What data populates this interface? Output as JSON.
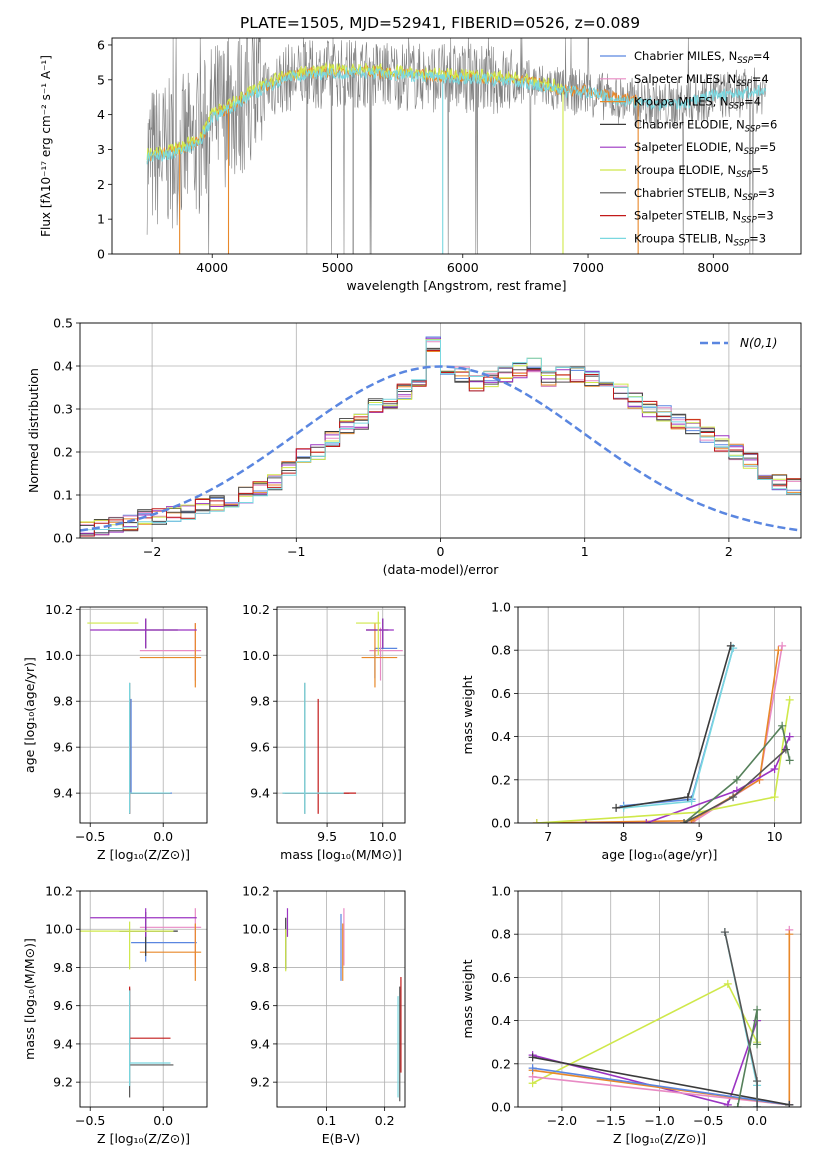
{
  "title": "PLATE=1505, MJD=52941, FIBERID=0526, z=0.089",
  "colors": {
    "chabrier_miles": "#5a86e0",
    "salpeter_miles": "#e88ac4",
    "kroupa_miles": "#e8882a",
    "chabrier_elodie": "#3b3b3b",
    "salpeter_elodie": "#9b34c2",
    "kroupa_elodie": "#cfe84a",
    "chabrier_stelib": "#555555",
    "salpeter_stelib": "#c21a1a",
    "kroupa_stelib": "#7ad8e0",
    "spectrum": "#808080",
    "green": "#55805a"
  },
  "chart_data": [
    {
      "id": "spectrum",
      "type": "line",
      "xlabel": "wavelength [Angstrom, rest frame]",
      "ylabel": "Flux [fλ10⁻¹⁷ erg cm⁻² s⁻¹ A⁻¹]",
      "xlim": [
        3200,
        8700
      ],
      "ylim": [
        0,
        6.2
      ],
      "xticks": [
        "4000",
        "5000",
        "6000",
        "7000",
        "8000"
      ],
      "yticks": [
        "0",
        "1",
        "2",
        "3",
        "4",
        "5",
        "6"
      ],
      "legend_position": "top-right",
      "legend": [
        "Chabrier MILES, N_SSP=4",
        "Salpeter MILES, N_SSP=4",
        "Kroupa MILES, N_SSP=4",
        "Chabrier ELODIE, N_SSP=6",
        "Salpeter ELODIE, N_SSP=5",
        "Kroupa ELODIE, N_SSP=5",
        "Chabrier STELIB, N_SSP=3",
        "Salpeter STELIB, N_SSP=3",
        "Kroupa STELIB, N_SSP=3"
      ],
      "continuum_x": [
        3500,
        3700,
        3900,
        4000,
        4200,
        4400,
        4600,
        4800,
        5000,
        5200,
        5400,
        5600,
        5800,
        6000,
        6200,
        6400,
        6600,
        6800,
        7000,
        7200,
        7400,
        7600,
        7800,
        8000,
        8200,
        8400
      ],
      "continuum_y": [
        2.75,
        2.9,
        3.2,
        3.9,
        4.3,
        4.75,
        5.05,
        5.15,
        5.2,
        5.2,
        5.15,
        5.1,
        5.05,
        5.05,
        5.0,
        4.95,
        4.85,
        4.65,
        4.65,
        4.45,
        4.35,
        4.25,
        4.35,
        4.55,
        4.6,
        4.7
      ]
    },
    {
      "id": "residuals",
      "type": "histogram",
      "xlabel": "(data-model)/error",
      "ylabel": "Normed distribution",
      "xlim": [
        -2.5,
        2.5
      ],
      "ylim": [
        0,
        0.5
      ],
      "xticks": [
        "−2",
        "−1",
        "0",
        "1",
        "2"
      ],
      "yticks": [
        "0.0",
        "0.1",
        "0.2",
        "0.3",
        "0.4",
        "0.5"
      ],
      "legend_position": "top-right",
      "legend": [
        "N(0,1)"
      ],
      "bin_width": 0.1,
      "bins_start": -2.5,
      "values": [
        0.022,
        0.025,
        0.03,
        0.035,
        0.05,
        0.05,
        0.055,
        0.06,
        0.075,
        0.08,
        0.09,
        0.1,
        0.115,
        0.13,
        0.16,
        0.19,
        0.2,
        0.23,
        0.26,
        0.27,
        0.31,
        0.32,
        0.34,
        0.36,
        0.45,
        0.37,
        0.38,
        0.36,
        0.37,
        0.38,
        0.39,
        0.4,
        0.37,
        0.38,
        0.38,
        0.37,
        0.35,
        0.34,
        0.32,
        0.3,
        0.29,
        0.27,
        0.26,
        0.24,
        0.22,
        0.2,
        0.18,
        0.15,
        0.13,
        0.12
      ]
    },
    {
      "id": "age-vs-Z",
      "type": "errorbar",
      "xlabel": "Z [log₁₀(Z/Z⊙)]",
      "ylabel": "age  [log₁₀(age/yr)]",
      "xlim": [
        -0.57,
        0.3
      ],
      "ylim": [
        9.27,
        10.21
      ],
      "xticks": [
        "−0.5",
        "0.0"
      ],
      "yticks": [
        "9.4",
        "9.6",
        "9.8",
        "10.0",
        "10.2"
      ],
      "points": [
        {
          "c": "chabrier_miles",
          "x": -0.22,
          "y": 9.4,
          "xe": [
            0.0,
            0.28
          ],
          "ye": [
            0.0,
            0.41
          ]
        },
        {
          "c": "salpeter_miles",
          "x": 0.22,
          "y": 10.02,
          "xe": [
            0.38,
            0.04
          ],
          "ye": [
            0.13,
            0.12
          ]
        },
        {
          "c": "kroupa_miles",
          "x": 0.22,
          "y": 9.99,
          "xe": [
            0.38,
            0.04
          ],
          "ye": [
            0.13,
            0.15
          ]
        },
        {
          "c": "chabrier_elodie",
          "x": -0.12,
          "y": 10.11,
          "xe": [
            0.18,
            0.22
          ],
          "ye": [
            0.08,
            0.05
          ]
        },
        {
          "c": "salpeter_elodie",
          "x": -0.12,
          "y": 10.11,
          "xe": [
            0.38,
            0.35
          ],
          "ye": [
            0.08,
            0.05
          ]
        },
        {
          "c": "kroupa_elodie",
          "x": -0.17,
          "y": 10.14,
          "xe": [
            0.35,
            0.0
          ],
          "ye": [
            0.0,
            0.0
          ]
        },
        {
          "c": "chabrier_stelib",
          "x": -0.23,
          "y": 9.4,
          "xe": [
            0.0,
            0.28
          ],
          "ye": [
            0.09,
            0.48
          ]
        },
        {
          "c": "salpeter_stelib",
          "x": -0.23,
          "y": 9.4,
          "xe": [
            0.0,
            0.28
          ],
          "ye": [
            0.09,
            0.41
          ]
        },
        {
          "c": "kroupa_stelib",
          "x": -0.23,
          "y": 9.4,
          "xe": [
            0.0,
            0.28
          ],
          "ye": [
            0.09,
            0.48
          ]
        }
      ]
    },
    {
      "id": "age-vs-mass",
      "type": "errorbar",
      "xlabel": "mass [log₁₀(M/M⊙)]",
      "ylabel": "",
      "xlim": [
        9.05,
        10.2
      ],
      "ylim": [
        9.27,
        10.21
      ],
      "xticks": [
        "9.5",
        "10.0"
      ],
      "yticks": [
        "9.4",
        "9.6",
        "9.8",
        "10.0",
        "10.2"
      ],
      "points": [
        {
          "c": "chabrier_miles",
          "x": 9.93,
          "y": 10.03,
          "xe": [
            0.0,
            0.2
          ],
          "ye": [
            0.13,
            0.0
          ]
        },
        {
          "c": "salpeter_miles",
          "x": 9.98,
          "y": 10.02,
          "xe": [
            0.1,
            0.2
          ],
          "ye": [
            0.13,
            0.1
          ]
        },
        {
          "c": "kroupa_miles",
          "x": 9.93,
          "y": 9.99,
          "xe": [
            0.12,
            0.2
          ],
          "ye": [
            0.13,
            0.15
          ]
        },
        {
          "c": "chabrier_elodie",
          "x": 10.0,
          "y": 10.11,
          "xe": [
            0.15,
            0.05
          ],
          "ye": [
            0.08,
            0.05
          ]
        },
        {
          "c": "salpeter_elodie",
          "x": 10.0,
          "y": 10.11,
          "xe": [
            0.15,
            0.1
          ],
          "ye": [
            0.08,
            0.05
          ]
        },
        {
          "c": "kroupa_elodie",
          "x": 9.96,
          "y": 10.14,
          "xe": [
            0.2,
            0.02
          ],
          "ye": [
            0.14,
            0.05
          ]
        },
        {
          "c": "chabrier_stelib",
          "x": 9.3,
          "y": 9.4,
          "xe": [
            0.2,
            0.4
          ],
          "ye": [
            0.09,
            0.48
          ]
        },
        {
          "c": "salpeter_stelib",
          "x": 9.42,
          "y": 9.4,
          "xe": [
            0.3,
            0.34
          ],
          "ye": [
            0.09,
            0.41
          ]
        },
        {
          "c": "kroupa_stelib",
          "x": 9.3,
          "y": 9.4,
          "xe": [
            0.2,
            0.35
          ],
          "ye": [
            0.09,
            0.48
          ]
        }
      ]
    },
    {
      "id": "mass-weight-vs-age",
      "type": "line",
      "xlabel": "age  [log₁₀(age/yr)]",
      "ylabel": "mass weight",
      "xlim": [
        6.6,
        10.35
      ],
      "ylim": [
        0,
        1
      ],
      "xticks": [
        "7",
        "8",
        "9",
        "10"
      ],
      "yticks": [
        "0.0",
        "0.2",
        "0.4",
        "0.6",
        "0.8",
        "1.0"
      ],
      "series": [
        {
          "c": "chabrier_miles",
          "x": [
            8.0,
            8.9,
            9.45
          ],
          "y": [
            0.08,
            0.11,
            0.81
          ]
        },
        {
          "c": "kroupa_stelib",
          "x": [
            8.0,
            8.9,
            9.45
          ],
          "y": [
            0.07,
            0.1,
            0.81
          ]
        },
        {
          "c": "chabrier_elodie",
          "x": [
            7.9,
            8.85,
            9.42
          ],
          "y": [
            0.07,
            0.12,
            0.82
          ]
        },
        {
          "c": "salpeter_miles",
          "x": [
            6.85,
            8.9,
            9.8,
            10.1
          ],
          "y": [
            0.0,
            0.0,
            0.2,
            0.82
          ]
        },
        {
          "c": "kroupa_miles",
          "x": [
            6.85,
            8.9,
            9.8,
            10.05
          ],
          "y": [
            0.0,
            0.01,
            0.2,
            0.8
          ]
        },
        {
          "c": "salpeter_elodie",
          "x": [
            7.5,
            8.3,
            9.5,
            10.0,
            10.2
          ],
          "y": [
            0.0,
            0.0,
            0.15,
            0.25,
            0.4
          ]
        },
        {
          "c": "kroupa_elodie",
          "x": [
            6.85,
            9.0,
            10.0,
            10.2
          ],
          "y": [
            0.0,
            0.05,
            0.12,
            0.57
          ]
        },
        {
          "c": "green",
          "x": [
            8.8,
            9.5,
            10.1,
            10.2
          ],
          "y": [
            0.0,
            0.2,
            0.45,
            0.29
          ]
        },
        {
          "c": "chabrier_stelib",
          "x": [
            8.8,
            9.45,
            10.15
          ],
          "y": [
            0.0,
            0.12,
            0.34
          ]
        }
      ]
    },
    {
      "id": "mass-vs-Z",
      "type": "errorbar",
      "xlabel": "Z [log₁₀(Z/Z⊙)]",
      "ylabel": "mass [log₁₀(M/M⊙)]",
      "xlim": [
        -0.57,
        0.3
      ],
      "ylim": [
        9.07,
        10.2
      ],
      "xticks": [
        "−0.5",
        "0.0"
      ],
      "yticks": [
        "9.2",
        "9.4",
        "9.6",
        "9.8",
        "10.0",
        "10.2"
      ],
      "points": [
        {
          "c": "chabrier_miles",
          "x": -0.12,
          "y": 9.93,
          "xe": [
            0.1,
            0.35
          ],
          "ye": [
            0.1,
            0.08
          ]
        },
        {
          "c": "salpeter_miles",
          "x": 0.22,
          "y": 10.01,
          "xe": [
            0.38,
            0.04
          ],
          "ye": [
            0.2,
            0.1
          ]
        },
        {
          "c": "kroupa_miles",
          "x": 0.22,
          "y": 9.88,
          "xe": [
            0.38,
            0.04
          ],
          "ye": [
            0.15,
            0.15
          ]
        },
        {
          "c": "chabrier_elodie",
          "x": -0.12,
          "y": 9.99,
          "xe": [
            0.18,
            0.22
          ],
          "ye": [
            0.13,
            0.1
          ]
        },
        {
          "c": "salpeter_elodie",
          "x": -0.12,
          "y": 10.06,
          "xe": [
            0.38,
            0.35
          ],
          "ye": [
            0.1,
            0.05
          ]
        },
        {
          "c": "kroupa_elodie",
          "x": -0.23,
          "y": 9.99,
          "xe": [
            0.35,
            0.3
          ],
          "ye": [
            0.2,
            0.05
          ]
        },
        {
          "c": "chabrier_stelib",
          "x": -0.23,
          "y": 9.29,
          "xe": [
            0.0,
            0.3
          ],
          "ye": [
            0.17,
            0.4
          ]
        },
        {
          "c": "salpeter_stelib",
          "x": -0.23,
          "y": 9.43,
          "xe": [
            0.0,
            0.28
          ],
          "ye": [
            0.13,
            0.27
          ]
        },
        {
          "c": "kroupa_stelib",
          "x": -0.23,
          "y": 9.3,
          "xe": [
            0.0,
            0.28
          ],
          "ye": [
            0.12,
            0.38
          ]
        }
      ]
    },
    {
      "id": "mass-vs-ebv",
      "type": "errorbar",
      "xlabel": "E(B-V)",
      "ylabel": "",
      "xlim": [
        0.015,
        0.235
      ],
      "ylim": [
        9.07,
        10.2
      ],
      "xticks": [
        "0.1",
        "0.2"
      ],
      "yticks": [
        "9.2",
        "9.4",
        "9.6",
        "9.8",
        "10.0",
        "10.2"
      ],
      "points": [
        {
          "c": "chabrier_miles",
          "x": 0.125,
          "y": 9.93,
          "xe": [
            0,
            0
          ],
          "ye": [
            0.2,
            0.15
          ]
        },
        {
          "c": "salpeter_miles",
          "x": 0.13,
          "y": 10.01,
          "xe": [
            0,
            0
          ],
          "ye": [
            0.2,
            0.1
          ]
        },
        {
          "c": "kroupa_miles",
          "x": 0.128,
          "y": 9.88,
          "xe": [
            0,
            0
          ],
          "ye": [
            0.15,
            0.15
          ]
        },
        {
          "c": "chabrier_elodie",
          "x": 0.03,
          "y": 9.99,
          "xe": [
            0,
            0
          ],
          "ye": [
            0.2,
            0.07
          ]
        },
        {
          "c": "salpeter_elodie",
          "x": 0.033,
          "y": 10.06,
          "xe": [
            0,
            0
          ],
          "ye": [
            0.1,
            0.05
          ]
        },
        {
          "c": "kroupa_elodie",
          "x": 0.03,
          "y": 9.9,
          "xe": [
            0,
            0
          ],
          "ye": [
            0.12,
            0.1
          ]
        },
        {
          "c": "chabrier_stelib",
          "x": 0.226,
          "y": 9.5,
          "xe": [
            0,
            0
          ],
          "ye": [
            0.4,
            0.2
          ]
        },
        {
          "c": "salpeter_stelib",
          "x": 0.228,
          "y": 9.55,
          "xe": [
            0,
            0
          ],
          "ye": [
            0.3,
            0.2
          ]
        },
        {
          "c": "kroupa_stelib",
          "x": 0.223,
          "y": 9.45,
          "xe": [
            0,
            0
          ],
          "ye": [
            0.33,
            0.2
          ]
        }
      ]
    },
    {
      "id": "mass-weight-vs-Z",
      "type": "line",
      "xlabel": "Z [log₁₀(Z/Z⊙)]",
      "ylabel": "mass weight",
      "xlim": [
        -2.45,
        0.45
      ],
      "ylim": [
        0,
        1
      ],
      "xticks": [
        "−2.0",
        "−1.5",
        "−1.0",
        "−0.5",
        "0.0"
      ],
      "yticks": [
        "0.0",
        "0.2",
        "0.4",
        "0.6",
        "0.8",
        "1.0"
      ],
      "series": [
        {
          "c": "kroupa_elodie",
          "x": [
            -2.3,
            -0.3,
            0.0
          ],
          "y": [
            0.11,
            0.57,
            0.3
          ]
        },
        {
          "c": "salpeter_elodie",
          "x": [
            -2.3,
            -0.3,
            0.0
          ],
          "y": [
            0.24,
            0.01,
            0.4
          ]
        },
        {
          "c": "salpeter_miles",
          "x": [
            -2.3,
            0.33,
            0.33
          ],
          "y": [
            0.14,
            0.01,
            0.82
          ]
        },
        {
          "c": "kroupa_miles",
          "x": [
            -2.3,
            0.33,
            0.33
          ],
          "y": [
            0.17,
            0.01,
            0.8
          ]
        },
        {
          "c": "chabrier_miles",
          "x": [
            -2.3,
            0.33
          ],
          "y": [
            0.18,
            0.01
          ]
        },
        {
          "c": "chabrier_elodie",
          "x": [
            -2.3,
            0.33
          ],
          "y": [
            0.23,
            0.01
          ]
        },
        {
          "c": "kroupa_stelib",
          "x": [
            -0.33,
            0.0,
            0.0
          ],
          "y": [
            0.81,
            0.1,
            0.0
          ]
        },
        {
          "c": "chabrier_stelib",
          "x": [
            -0.33,
            0.0,
            0.0
          ],
          "y": [
            0.81,
            0.12,
            0.0
          ]
        },
        {
          "c": "green",
          "x": [
            -0.2,
            0.0,
            0.0
          ],
          "y": [
            0.0,
            0.45,
            0.29
          ]
        }
      ]
    }
  ]
}
